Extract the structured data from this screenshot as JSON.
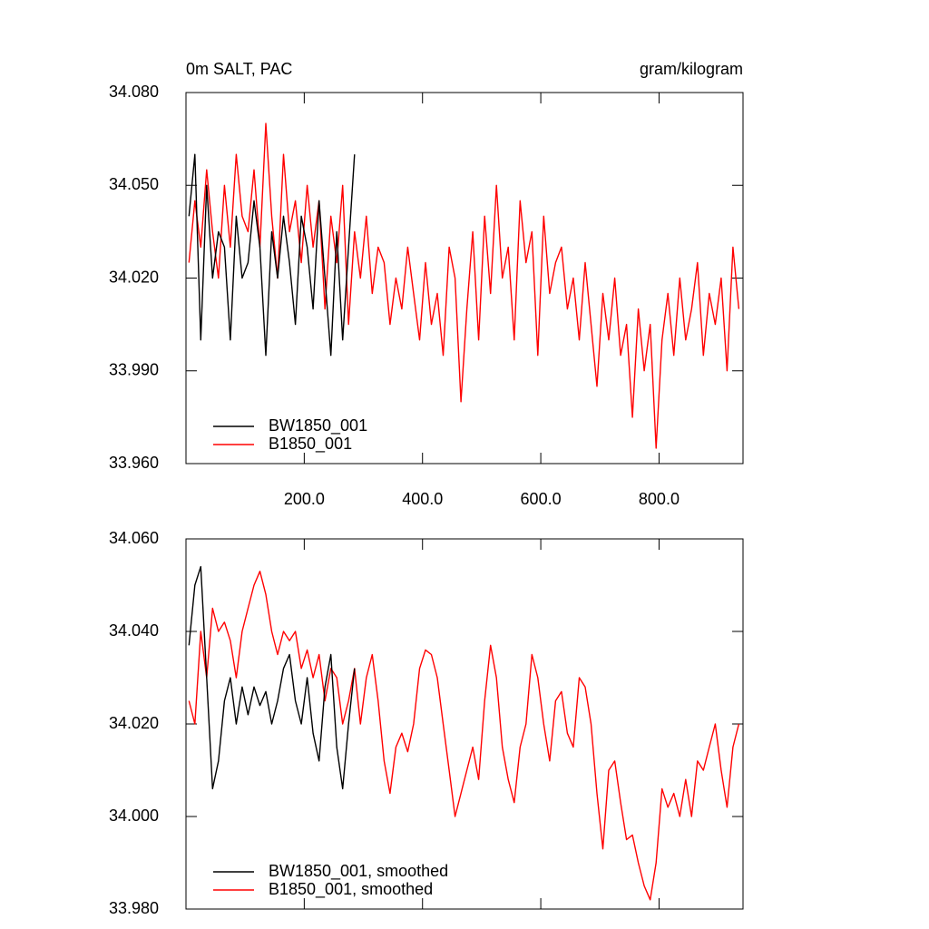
{
  "chart_data": [
    {
      "type": "line",
      "title": "0m SALT, PAC",
      "units": "gram/kilogram",
      "xlim": [
        0,
        942
      ],
      "ylim": [
        33.96,
        34.08
      ],
      "xticks": [
        {
          "value": 200,
          "label": "200.0"
        },
        {
          "value": 400,
          "label": "400.0"
        },
        {
          "value": 600,
          "label": "600.0"
        },
        {
          "value": 800,
          "label": "800.0"
        }
      ],
      "yticks": [
        {
          "value": 34.08,
          "label": "34.080"
        },
        {
          "value": 34.05,
          "label": "34.050"
        },
        {
          "value": 34.02,
          "label": "34.020"
        },
        {
          "value": 33.99,
          "label": "33.990"
        },
        {
          "value": 33.96,
          "label": "33.960"
        }
      ],
      "show_xtick_labels": true,
      "series": [
        {
          "name": "BW1850_001",
          "color": "#000000",
          "x": [
            5,
            15,
            25,
            35,
            45,
            55,
            65,
            75,
            85,
            95,
            105,
            115,
            125,
            135,
            145,
            155,
            165,
            175,
            185,
            195,
            205,
            215,
            225,
            235,
            245,
            255,
            265,
            275,
            285
          ],
          "values": [
            34.04,
            34.06,
            34.0,
            34.05,
            34.02,
            34.035,
            34.03,
            34.0,
            34.04,
            34.02,
            34.025,
            34.045,
            34.03,
            33.995,
            34.035,
            34.02,
            34.04,
            34.025,
            34.005,
            34.04,
            34.03,
            34.01,
            34.045,
            34.02,
            33.995,
            34.035,
            34.0,
            34.03,
            34.06
          ]
        },
        {
          "name": "B1850_001",
          "color": "#ff0000",
          "x": [
            5,
            15,
            25,
            35,
            45,
            55,
            65,
            75,
            85,
            95,
            105,
            115,
            125,
            135,
            145,
            155,
            165,
            175,
            185,
            195,
            205,
            215,
            225,
            235,
            245,
            255,
            265,
            275,
            285,
            295,
            305,
            315,
            325,
            335,
            345,
            355,
            365,
            375,
            385,
            395,
            405,
            415,
            425,
            435,
            445,
            455,
            465,
            475,
            485,
            495,
            505,
            515,
            525,
            535,
            545,
            555,
            565,
            575,
            585,
            595,
            605,
            615,
            625,
            635,
            645,
            655,
            665,
            675,
            685,
            695,
            705,
            715,
            725,
            735,
            745,
            755,
            765,
            775,
            785,
            795,
            805,
            815,
            825,
            835,
            845,
            855,
            865,
            875,
            885,
            895,
            905,
            915,
            925,
            935
          ],
          "values": [
            34.025,
            34.045,
            34.03,
            34.055,
            34.035,
            34.02,
            34.05,
            34.03,
            34.06,
            34.04,
            34.035,
            34.055,
            34.03,
            34.07,
            34.04,
            34.02,
            34.06,
            34.035,
            34.045,
            34.025,
            34.05,
            34.03,
            34.045,
            34.01,
            34.04,
            34.025,
            34.05,
            34.005,
            34.035,
            34.02,
            34.04,
            34.015,
            34.03,
            34.025,
            34.005,
            34.02,
            34.01,
            34.03,
            34.015,
            34.0,
            34.025,
            34.005,
            34.015,
            33.995,
            34.03,
            34.02,
            33.98,
            34.01,
            34.035,
            34.0,
            34.04,
            34.015,
            34.05,
            34.02,
            34.03,
            34.0,
            34.045,
            34.025,
            34.035,
            33.995,
            34.04,
            34.015,
            34.025,
            34.03,
            34.01,
            34.02,
            34.0,
            34.025,
            34.005,
            33.985,
            34.015,
            34.0,
            34.02,
            33.995,
            34.005,
            33.975,
            34.01,
            33.99,
            34.005,
            33.965,
            34.0,
            34.015,
            33.995,
            34.02,
            34.0,
            34.01,
            34.025,
            33.995,
            34.015,
            34.005,
            34.02,
            33.99,
            34.03,
            34.01
          ]
        }
      ]
    },
    {
      "type": "line",
      "xlim": [
        0,
        942
      ],
      "ylim": [
        33.98,
        34.06
      ],
      "xticks": [
        200,
        400,
        600,
        800
      ],
      "yticks": [
        {
          "value": 34.06,
          "label": "34.060"
        },
        {
          "value": 34.04,
          "label": "34.040"
        },
        {
          "value": 34.02,
          "label": "34.020"
        },
        {
          "value": 34.0,
          "label": "34.000"
        },
        {
          "value": 33.98,
          "label": "33.980"
        }
      ],
      "show_xtick_labels": false,
      "series": [
        {
          "name": "BW1850_001, smoothed",
          "color": "#000000",
          "x": [
            5,
            15,
            25,
            35,
            45,
            55,
            65,
            75,
            85,
            95,
            105,
            115,
            125,
            135,
            145,
            155,
            165,
            175,
            185,
            195,
            205,
            215,
            225,
            235,
            245,
            255,
            265,
            275,
            285
          ],
          "values": [
            34.037,
            34.05,
            34.054,
            34.03,
            34.006,
            34.012,
            34.025,
            34.03,
            34.02,
            34.028,
            34.022,
            34.028,
            34.024,
            34.027,
            34.02,
            34.025,
            34.032,
            34.035,
            34.025,
            34.02,
            34.03,
            34.018,
            34.012,
            34.028,
            34.035,
            34.015,
            34.006,
            34.02,
            34.032
          ]
        },
        {
          "name": "B1850_001, smoothed",
          "color": "#ff0000",
          "x": [
            5,
            15,
            25,
            35,
            45,
            55,
            65,
            75,
            85,
            95,
            105,
            115,
            125,
            135,
            145,
            155,
            165,
            175,
            185,
            195,
            205,
            215,
            225,
            235,
            245,
            255,
            265,
            275,
            285,
            295,
            305,
            315,
            325,
            335,
            345,
            355,
            365,
            375,
            385,
            395,
            405,
            415,
            425,
            435,
            445,
            455,
            465,
            475,
            485,
            495,
            505,
            515,
            525,
            535,
            545,
            555,
            565,
            575,
            585,
            595,
            605,
            615,
            625,
            635,
            645,
            655,
            665,
            675,
            685,
            695,
            705,
            715,
            725,
            735,
            745,
            755,
            765,
            775,
            785,
            795,
            805,
            815,
            825,
            835,
            845,
            855,
            865,
            875,
            885,
            895,
            905,
            915,
            925,
            935
          ],
          "values": [
            34.025,
            34.02,
            34.04,
            34.03,
            34.045,
            34.04,
            34.042,
            34.038,
            34.03,
            34.04,
            34.045,
            34.05,
            34.053,
            34.048,
            34.04,
            34.035,
            34.04,
            34.038,
            34.04,
            34.032,
            34.036,
            34.03,
            34.035,
            34.025,
            34.032,
            34.03,
            34.02,
            34.025,
            34.032,
            34.02,
            34.03,
            34.035,
            34.025,
            34.012,
            34.005,
            34.015,
            34.018,
            34.014,
            34.02,
            34.032,
            34.036,
            34.035,
            34.03,
            34.02,
            34.01,
            34.0,
            34.005,
            34.01,
            34.015,
            34.008,
            34.025,
            34.037,
            34.03,
            34.015,
            34.008,
            34.003,
            34.015,
            34.02,
            34.035,
            34.03,
            34.02,
            34.012,
            34.025,
            34.027,
            34.018,
            34.015,
            34.03,
            34.028,
            34.02,
            34.005,
            33.993,
            34.01,
            34.012,
            34.003,
            33.995,
            33.996,
            33.99,
            33.985,
            33.982,
            33.99,
            34.006,
            34.002,
            34.005,
            34.0,
            34.008,
            34.0,
            34.012,
            34.01,
            34.015,
            34.02,
            34.01,
            34.002,
            34.015,
            34.02
          ]
        }
      ]
    }
  ]
}
